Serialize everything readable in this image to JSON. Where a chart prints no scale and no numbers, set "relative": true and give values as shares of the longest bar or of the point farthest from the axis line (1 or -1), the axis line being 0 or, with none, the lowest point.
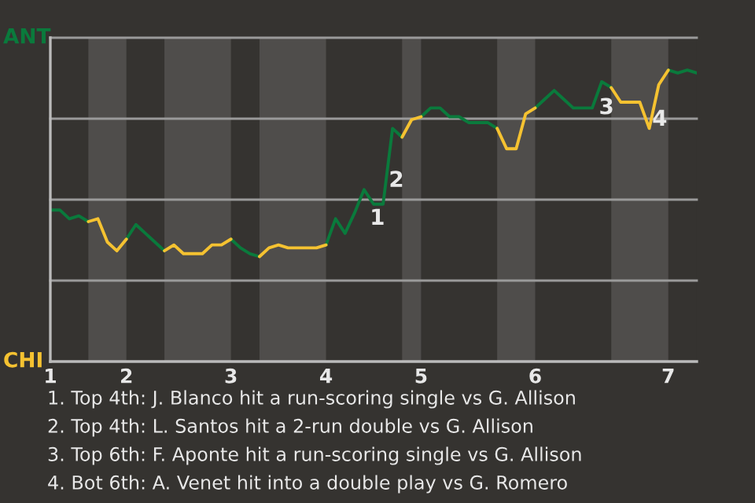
{
  "chart_data": {
    "type": "line",
    "relative": true,
    "categories": [
      "1",
      null,
      null,
      null,
      null,
      null,
      null,
      null,
      "2",
      null,
      null,
      null,
      null,
      null,
      null,
      null,
      null,
      null,
      null,
      "3",
      null,
      null,
      null,
      null,
      null,
      null,
      null,
      null,
      null,
      "4",
      null,
      null,
      null,
      null,
      null,
      null,
      null,
      null,
      null,
      "5",
      null,
      null,
      null,
      null,
      null,
      null,
      null,
      null,
      null,
      null,
      null,
      "6",
      null,
      null,
      null,
      null,
      null,
      null,
      null,
      null,
      null,
      null,
      null,
      null,
      null,
      "7",
      null,
      null,
      null
    ],
    "series": [
      {
        "color": "#0a7a3c",
        "values": [
          0.52,
          0.52,
          0.49,
          0.5,
          0.48,
          null,
          null,
          null,
          0.42,
          0.47,
          0.44,
          0.41,
          0.38,
          null,
          null,
          null,
          null,
          null,
          null,
          0.42,
          0.39,
          0.37,
          0.36,
          null,
          null,
          null,
          null,
          null,
          null,
          0.4,
          0.49,
          0.44,
          0.51,
          0.59,
          0.54,
          0.54,
          0.8,
          0.77,
          null,
          0.84,
          0.87,
          0.87,
          0.84,
          0.84,
          0.82,
          0.82,
          0.82,
          0.8,
          null,
          null,
          null,
          0.87,
          0.9,
          0.93,
          0.9,
          0.87,
          0.87,
          0.87,
          0.96,
          0.94,
          null,
          null,
          null,
          null,
          null,
          1,
          0.99,
          1,
          0.99
        ]
      },
      {
        "color": "#f5c231",
        "values": [
          null,
          null,
          null,
          null,
          0.48,
          0.49,
          0.41,
          0.38,
          0.42,
          null,
          null,
          null,
          0.38,
          0.4,
          0.37,
          0.37,
          0.37,
          0.4,
          0.4,
          0.42,
          null,
          null,
          0.36,
          0.39,
          0.4,
          0.39,
          0.39,
          0.39,
          0.39,
          0.4,
          null,
          null,
          null,
          null,
          null,
          null,
          null,
          0.77,
          0.83,
          0.84,
          null,
          null,
          null,
          null,
          null,
          null,
          null,
          0.8,
          0.73,
          0.73,
          0.85,
          0.87,
          null,
          null,
          null,
          null,
          null,
          null,
          null,
          0.94,
          0.89,
          0.89,
          0.89,
          0.8,
          0.95,
          1,
          null,
          null,
          null
        ]
      }
    ],
    "grid": "y",
    "annotations": [
      "ANT",
      "CHI",
      "1",
      "2",
      "3",
      "4",
      "1. Top 4th: J. Blanco hit a run-scoring single vs G. Allison",
      "2. Top 4th: L. Santos hit a 2-run double vs G. Allison",
      "3. Top 6th: F. Aponte hit a run-scoring single vs G. Allison",
      "4. Bot 6th: A. Venet hit into a double play vs G. Romero"
    ]
  }
}
